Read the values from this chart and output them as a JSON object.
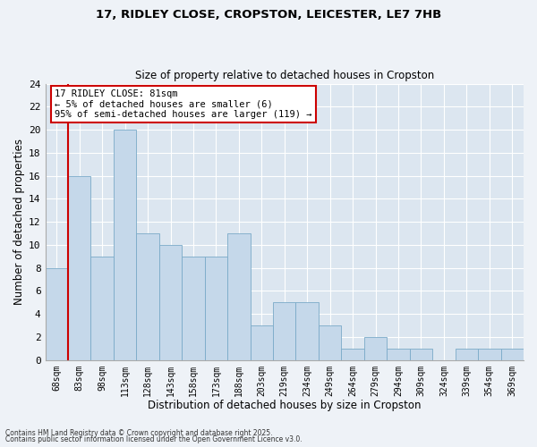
{
  "title_line1": "17, RIDLEY CLOSE, CROPSTON, LEICESTER, LE7 7HB",
  "title_line2": "Size of property relative to detached houses in Cropston",
  "xlabel": "Distribution of detached houses by size in Cropston",
  "ylabel": "Number of detached properties",
  "bar_labels": [
    "68sqm",
    "83sqm",
    "98sqm",
    "113sqm",
    "128sqm",
    "143sqm",
    "158sqm",
    "173sqm",
    "188sqm",
    "203sqm",
    "219sqm",
    "234sqm",
    "249sqm",
    "264sqm",
    "279sqm",
    "294sqm",
    "309sqm",
    "324sqm",
    "339sqm",
    "354sqm",
    "369sqm"
  ],
  "bar_values": [
    8,
    16,
    9,
    20,
    11,
    10,
    9,
    9,
    11,
    3,
    5,
    5,
    3,
    1,
    2,
    1,
    1,
    0,
    1,
    1,
    1
  ],
  "bar_color": "#c5d8ea",
  "bar_edge_color": "#7aaac8",
  "highlight_line_color": "#cc0000",
  "ylim": [
    0,
    24
  ],
  "yticks": [
    0,
    2,
    4,
    6,
    8,
    10,
    12,
    14,
    16,
    18,
    20,
    22,
    24
  ],
  "annotation_title": "17 RIDLEY CLOSE: 81sqm",
  "annotation_line1": "← 5% of detached houses are smaller (6)",
  "annotation_line2": "95% of semi-detached houses are larger (119) →",
  "annotation_box_color": "#ffffff",
  "annotation_border_color": "#cc0000",
  "footnote_line1": "Contains HM Land Registry data © Crown copyright and database right 2025.",
  "footnote_line2": "Contains public sector information licensed under the Open Government Licence v3.0.",
  "bg_color": "#eef2f7",
  "plot_bg_color": "#dce6f0",
  "grid_color": "#ffffff"
}
